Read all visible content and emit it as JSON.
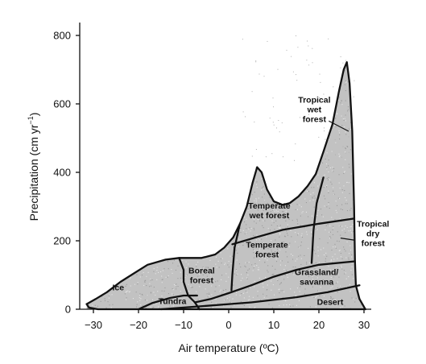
{
  "chart_data": {
    "type": "area",
    "xlabel": "Air temperature (ºC)",
    "ylabel": "Precipitation (cm yr",
    "ylabel_sup": "−1",
    "ylabel_end": ")",
    "xlim": [
      -33,
      32
    ],
    "ylim": [
      0,
      820
    ],
    "x_ticks": [
      -30,
      -20,
      -10,
      0,
      10,
      20,
      30
    ],
    "y_ticks": [
      0,
      200,
      400,
      600,
      800
    ],
    "x_tick_labels": [
      "−30",
      "−20",
      "−10",
      "0",
      "10",
      "20",
      "30"
    ],
    "y_tick_labels": [
      "0",
      "200",
      "400",
      "600",
      "800"
    ],
    "colors": {
      "fill": "#c2c2c2",
      "dots": "#9a9a9a",
      "line": "#111111"
    },
    "regions": [
      {
        "lines": [
          "Ice"
        ],
        "x": -24.5,
        "y": 65
      },
      {
        "lines": [
          "Tundra"
        ],
        "x": -12.5,
        "y": 25
      },
      {
        "lines": [
          "Boreal",
          "forest"
        ],
        "x": -6,
        "y": 100
      },
      {
        "lines": [
          "Temperate",
          "wet forest"
        ],
        "x": 9,
        "y": 290
      },
      {
        "lines": [
          "Temperate",
          "forest"
        ],
        "x": 8.5,
        "y": 175
      },
      {
        "lines": [
          "Grassland/",
          "savanna"
        ],
        "x": 19.5,
        "y": 95
      },
      {
        "lines": [
          "Desert"
        ],
        "x": 22.5,
        "y": 22
      },
      {
        "lines": [
          "Tropical",
          "wet",
          "forest"
        ],
        "x": 19,
        "y": 585
      },
      {
        "lines": [
          "Tropical",
          "dry",
          "forest"
        ],
        "x": 32,
        "y": 222
      }
    ],
    "outline": [
      [
        -31.5,
        15
      ],
      [
        -29.5,
        30
      ],
      [
        -27,
        50
      ],
      [
        -24,
        80
      ],
      [
        -21,
        105
      ],
      [
        -18,
        130
      ],
      [
        -14,
        145
      ],
      [
        -11,
        150
      ],
      [
        -6,
        150
      ],
      [
        -3,
        160
      ],
      [
        -1,
        180
      ],
      [
        1,
        210
      ],
      [
        2.5,
        250
      ],
      [
        4,
        300
      ],
      [
        5.3,
        370
      ],
      [
        6.3,
        415
      ],
      [
        7.3,
        400
      ],
      [
        8.5,
        350
      ],
      [
        10,
        315
      ],
      [
        12,
        305
      ],
      [
        13.5,
        310
      ],
      [
        15.5,
        330
      ],
      [
        17.5,
        360
      ],
      [
        19.3,
        395
      ],
      [
        21,
        460
      ],
      [
        23,
        540
      ],
      [
        24.5,
        640
      ],
      [
        25.5,
        700
      ],
      [
        26.2,
        722
      ],
      [
        26.8,
        660
      ],
      [
        27.4,
        520
      ],
      [
        27.8,
        300
      ],
      [
        28,
        140
      ],
      [
        28.2,
        70
      ],
      [
        29,
        30
      ],
      [
        30.3,
        0
      ],
      [
        -31.5,
        0
      ]
    ],
    "boundaries": [
      [
        [
          -31.5,
          15
        ],
        [
          -29.5,
          30
        ],
        [
          -27,
          50
        ],
        [
          -24,
          80
        ],
        [
          -21,
          105
        ],
        [
          -18,
          130
        ],
        [
          -14,
          145
        ],
        [
          -11,
          150
        ],
        [
          -6,
          150
        ],
        [
          -3,
          160
        ],
        [
          -1,
          180
        ],
        [
          1,
          210
        ],
        [
          2.5,
          250
        ],
        [
          4,
          300
        ],
        [
          5.3,
          370
        ],
        [
          6.3,
          415
        ],
        [
          7.3,
          400
        ],
        [
          8.5,
          350
        ],
        [
          10,
          315
        ],
        [
          12,
          305
        ],
        [
          13.5,
          310
        ],
        [
          15.5,
          330
        ],
        [
          17.5,
          360
        ],
        [
          19.3,
          395
        ],
        [
          21,
          460
        ],
        [
          23,
          540
        ],
        [
          24.5,
          640
        ],
        [
          25.5,
          700
        ],
        [
          26.2,
          722
        ],
        [
          26.8,
          660
        ],
        [
          27.4,
          520
        ],
        [
          27.8,
          300
        ],
        [
          28,
          140
        ],
        [
          28.2,
          70
        ],
        [
          29,
          30
        ],
        [
          30.3,
          0
        ]
      ],
      [
        [
          -31.5,
          15
        ],
        [
          -31,
          5
        ],
        [
          -29,
          0
        ],
        [
          30.3,
          0
        ]
      ],
      [
        [
          -20,
          0
        ],
        [
          -17,
          18
        ],
        [
          -13,
          33
        ],
        [
          -10,
          40
        ],
        [
          -7,
          40
        ]
      ],
      [
        [
          -11,
          150
        ],
        [
          -10,
          115
        ],
        [
          -10,
          80
        ],
        [
          -9,
          40
        ],
        [
          -7.5,
          20
        ],
        [
          -6.5,
          0
        ]
      ],
      [
        [
          -7.5,
          20
        ],
        [
          -4,
          30
        ],
        [
          0,
          47
        ],
        [
          5,
          70
        ],
        [
          10,
          95
        ],
        [
          15,
          115
        ],
        [
          20,
          130
        ],
        [
          28,
          140
        ]
      ],
      [
        [
          -15,
          0
        ],
        [
          -5,
          10
        ],
        [
          5,
          20
        ],
        [
          15,
          35
        ],
        [
          22,
          50
        ],
        [
          29,
          70
        ]
      ],
      [
        [
          2.5,
          250
        ],
        [
          1.3,
          180
        ],
        [
          0.8,
          100
        ],
        [
          0.6,
          55
        ]
      ],
      [
        [
          0.8,
          190
        ],
        [
          6,
          210
        ],
        [
          12,
          232
        ],
        [
          20,
          250
        ],
        [
          27.8,
          265
        ]
      ],
      [
        [
          21,
          385
        ],
        [
          19.5,
          310
        ],
        [
          18.8,
          230
        ],
        [
          18.4,
          135
        ]
      ]
    ],
    "pointers": [
      {
        "from": [
          22.2,
          550
        ],
        "to": [
          26.6,
          520
        ]
      },
      {
        "from": [
          24.8,
          208
        ],
        "to": [
          27.8,
          202
        ]
      }
    ]
  }
}
